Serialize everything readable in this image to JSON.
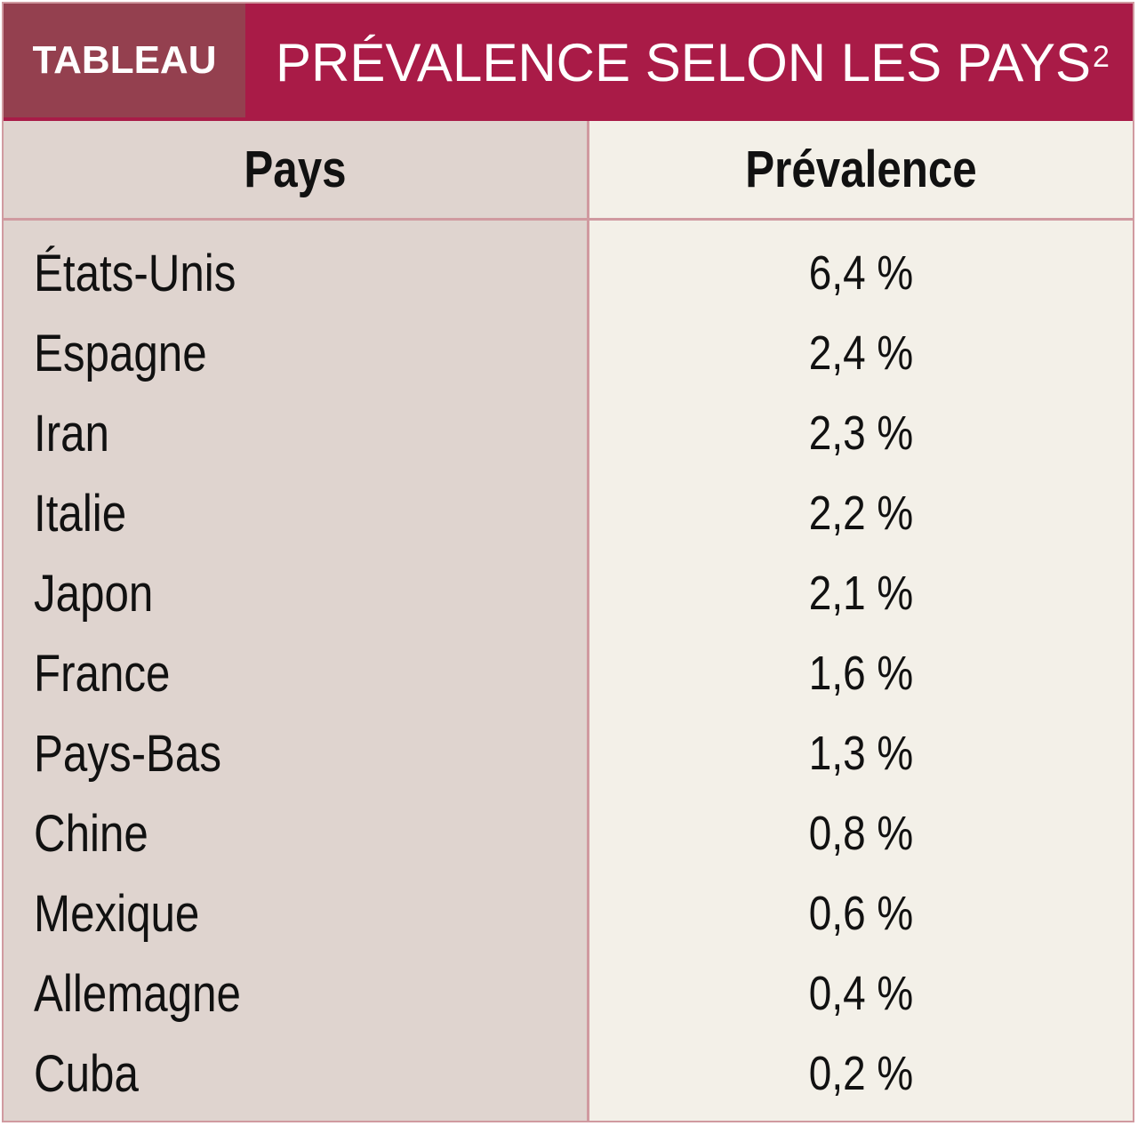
{
  "header": {
    "tag": "TABLEAU",
    "title": "PRÉVALENCE SELON LES PAYS",
    "title_superscript": "2"
  },
  "table": {
    "columns": [
      "Pays",
      "Prévalence"
    ],
    "rows": [
      {
        "country": "États-Unis",
        "value": "6,4 %"
      },
      {
        "country": "Espagne",
        "value": "2,4 %"
      },
      {
        "country": "Iran",
        "value": "2,3 %"
      },
      {
        "country": "Italie",
        "value": "2,2 %"
      },
      {
        "country": "Japon",
        "value": "2,1 %"
      },
      {
        "country": "France",
        "value": "1,6 %"
      },
      {
        "country": "Pays-Bas",
        "value": "1,3 %"
      },
      {
        "country": "Chine",
        "value": "0,8 %"
      },
      {
        "country": "Mexique",
        "value": "0,6 %"
      },
      {
        "country": "Allemagne",
        "value": "0,4 %"
      },
      {
        "country": "Cuba",
        "value": "0,2 %"
      }
    ]
  },
  "colors": {
    "title_bar": "#a91b47",
    "title_tag": "#94404f",
    "left_column": "#dfd4cf",
    "right_column": "#f3f0e8",
    "border": "#d09aa0"
  }
}
